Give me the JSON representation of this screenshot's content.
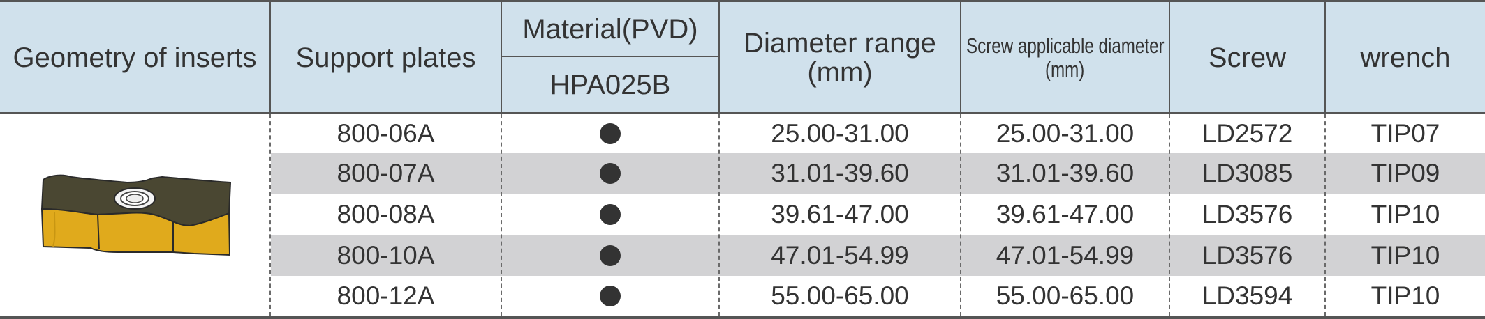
{
  "header": {
    "geometry": "Geometry of inserts",
    "support_plates": "Support plates",
    "material": "Material(PVD)",
    "grade": "HPA025B",
    "diameter_range_line1": "Diameter range",
    "diameter_range_line2": "(mm)",
    "screw_diameter_line1": "Screw applicable diameter",
    "screw_diameter_line2": "(mm)",
    "screw": "Screw",
    "wrench": "wrench"
  },
  "insert_icon": "indexable-insert-icon",
  "colors": {
    "header_bg": "#d0e1ec",
    "stripe_bg": "#d2d2d4",
    "insert_body": "#4a4732",
    "insert_edge": "#e0aa1c"
  },
  "rows": [
    {
      "plate": "800-06A",
      "available": true,
      "diameter_range": "25.00-31.00",
      "screw_diameter": "25.00-31.00",
      "screw": "LD2572",
      "wrench": "TIP07"
    },
    {
      "plate": "800-07A",
      "available": true,
      "diameter_range": "31.01-39.60",
      "screw_diameter": "31.01-39.60",
      "screw": "LD3085",
      "wrench": "TIP09"
    },
    {
      "plate": "800-08A",
      "available": true,
      "diameter_range": "39.61-47.00",
      "screw_diameter": "39.61-47.00",
      "screw": "LD3576",
      "wrench": "TIP10"
    },
    {
      "plate": "800-10A",
      "available": true,
      "diameter_range": "47.01-54.99",
      "screw_diameter": "47.01-54.99",
      "screw": "LD3576",
      "wrench": "TIP10"
    },
    {
      "plate": "800-12A",
      "available": true,
      "diameter_range": "55.00-65.00",
      "screw_diameter": "55.00-65.00",
      "screw": "LD3594",
      "wrench": "TIP10"
    }
  ]
}
